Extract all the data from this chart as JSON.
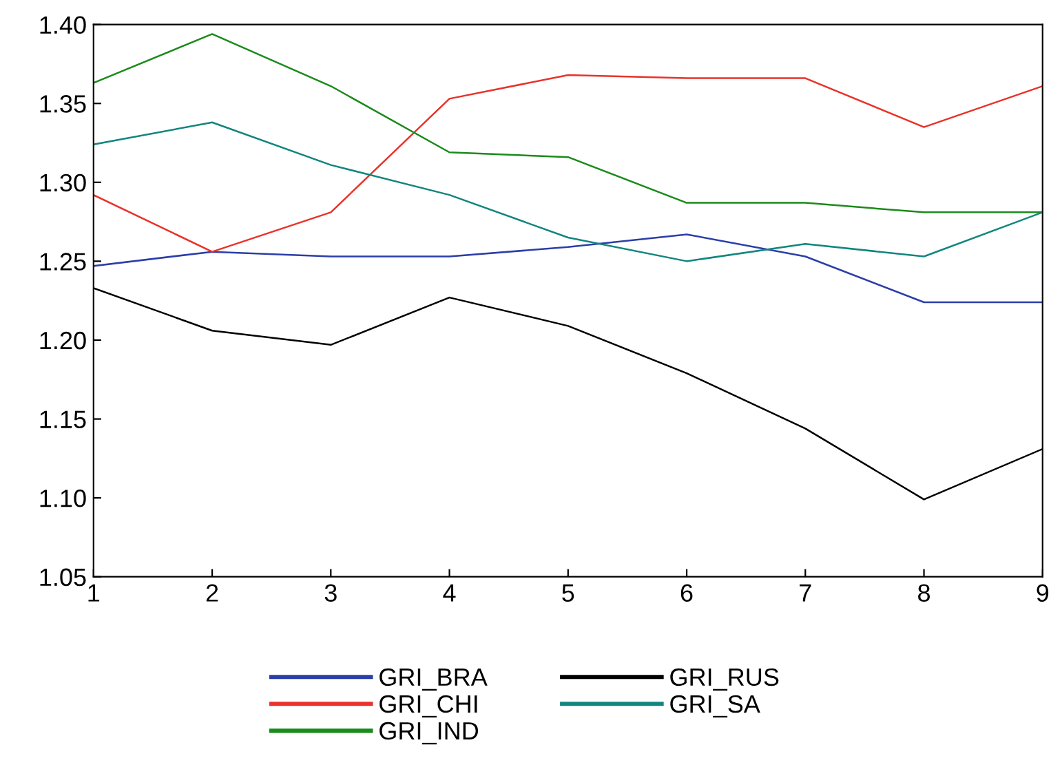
{
  "chart_data": {
    "type": "line",
    "x": [
      1,
      2,
      3,
      4,
      5,
      6,
      7,
      8,
      9
    ],
    "xlim": [
      1,
      9
    ],
    "xticks": [
      1,
      2,
      3,
      4,
      5,
      6,
      7,
      8,
      9
    ],
    "ylim": [
      1.05,
      1.4
    ],
    "yticks": [
      {
        "value": 1.05,
        "label": "1.05"
      },
      {
        "value": 1.1,
        "label": "1.10"
      },
      {
        "value": 1.15,
        "label": "1.15"
      },
      {
        "value": 1.2,
        "label": "1.20"
      },
      {
        "value": 1.25,
        "label": "1.25"
      },
      {
        "value": 1.3,
        "label": "1.30"
      },
      {
        "value": 1.35,
        "label": "1.35"
      },
      {
        "value": 1.4,
        "label": "1.40"
      }
    ],
    "grid": false,
    "legend": "bottom",
    "marker": "none",
    "line_style": "solid",
    "series": [
      {
        "name": "GRI_BRA",
        "color": "#2b3ea8",
        "values": [
          1.247,
          1.256,
          1.253,
          1.253,
          1.259,
          1.267,
          1.253,
          1.224,
          1.224
        ]
      },
      {
        "name": "GRI_CHI",
        "color": "#e8322a",
        "values": [
          1.292,
          1.256,
          1.281,
          1.353,
          1.368,
          1.366,
          1.366,
          1.335,
          1.361
        ]
      },
      {
        "name": "GRI_IND",
        "color": "#1a8a1a",
        "values": [
          1.363,
          1.394,
          1.361,
          1.319,
          1.316,
          1.287,
          1.287,
          1.281,
          1.281
        ]
      },
      {
        "name": "GRI_RUS",
        "color": "#000000",
        "values": [
          1.233,
          1.206,
          1.197,
          1.227,
          1.209,
          1.179,
          1.144,
          1.099,
          1.131
        ]
      },
      {
        "name": "GRI_SA",
        "color": "#11857e",
        "values": [
          1.324,
          1.338,
          1.311,
          1.292,
          1.265,
          1.25,
          1.261,
          1.253,
          1.281
        ]
      }
    ]
  }
}
